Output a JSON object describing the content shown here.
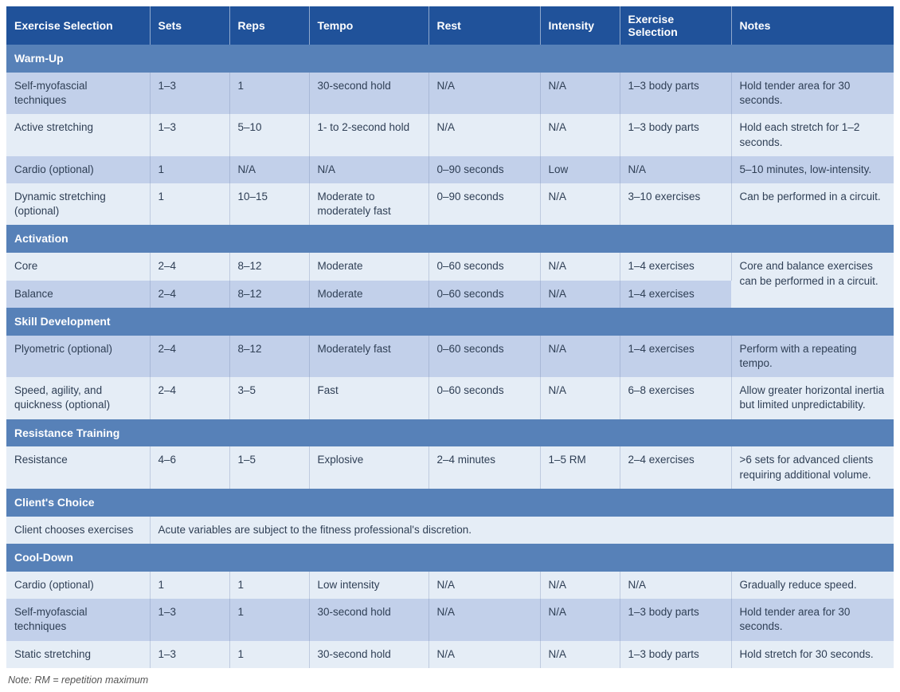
{
  "colors": {
    "header_bg": "#20529a",
    "header_fg": "#ffffff",
    "section_bg": "#5781b8",
    "section_fg": "#ffffff",
    "row_a_bg": "#c2d0ea",
    "row_b_bg": "#e5edf6",
    "row_fg": "#2f3f55"
  },
  "columns": [
    "Exercise Selection",
    "Sets",
    "Reps",
    "Tempo",
    "Rest",
    "Intensity",
    "Exercise Selection",
    "Notes"
  ],
  "footnote_label": "Note:",
  "footnote_text": "RM = repetition maximum",
  "sections": [
    {
      "title": "Warm-Up",
      "rows": [
        {
          "style": "a",
          "c1": "Self-myofascial techniques",
          "c2": "1–3",
          "c3": "1",
          "c4": "30-second hold",
          "c5": "N/A",
          "c6": "N/A",
          "c7": "1–3 body parts",
          "c8": "Hold tender area for 30 seconds."
        },
        {
          "style": "b",
          "c1": "Active stretching",
          "c2": "1–3",
          "c3": "5–10",
          "c4": "1- to 2-second hold",
          "c5": "N/A",
          "c6": "N/A",
          "c7": "1–3 body parts",
          "c8": "Hold each stretch for 1–2 seconds."
        },
        {
          "style": "a",
          "c1": "Cardio (optional)",
          "c2": "1",
          "c3": "N/A",
          "c4": "N/A",
          "c5": "0–90 seconds",
          "c6": "Low",
          "c7": "N/A",
          "c8": "5–10 minutes, low-intensity."
        },
        {
          "style": "b",
          "c1": "Dynamic stretching (optional)",
          "c2": "1",
          "c3": "10–15",
          "c4": "Moderate to moderately fast",
          "c5": "0–90 seconds",
          "c6": "N/A",
          "c7": "3–10 exercises",
          "c8": "Can be performed in a circuit."
        }
      ]
    },
    {
      "title": "Activation",
      "mergedNote": "Core and balance exercises can be performed in a circuit.",
      "rows": [
        {
          "style": "b",
          "c1": "Core",
          "c2": "2–4",
          "c3": "8–12",
          "c4": "Moderate",
          "c5": "0–60 seconds",
          "c6": "N/A",
          "c7": "1–4 exercises",
          "c8_merge_start": true
        },
        {
          "style": "a",
          "c1": "Balance",
          "c2": "2–4",
          "c3": "8–12",
          "c4": "Moderate",
          "c5": "0–60 seconds",
          "c6": "N/A",
          "c7": "1–4 exercises",
          "c8_merged": true
        }
      ]
    },
    {
      "title": "Skill Development",
      "rows": [
        {
          "style": "a",
          "c1": "Plyometric (optional)",
          "c2": "2–4",
          "c3": "8–12",
          "c4": "Moderately fast",
          "c5": "0–60 seconds",
          "c6": "N/A",
          "c7": "1–4 exercises",
          "c8": "Perform with a repeating tempo."
        },
        {
          "style": "b",
          "c1": "Speed, agility, and quickness (optional)",
          "c2": "2–4",
          "c3": "3–5",
          "c4": "Fast",
          "c5": "0–60 seconds",
          "c6": "N/A",
          "c7": "6–8 exercises",
          "c8": "Allow greater horizontal inertia but limited unpredictability."
        }
      ]
    },
    {
      "title": "Resistance Training",
      "rows": [
        {
          "style": "b",
          "c1": "Resistance",
          "c2": "4–6",
          "c3": "1–5",
          "c4": "Explosive",
          "c5": "2–4 minutes",
          "c6": "1–5 RM",
          "c7": "2–4 exercises",
          "c8": ">6 sets for advanced clients requiring additional volume."
        }
      ]
    },
    {
      "title": "Client's Choice",
      "rows": [
        {
          "style": "b",
          "c1": "Client chooses exercises",
          "span_text": "Acute variables are subject to the fitness professional's discretion."
        }
      ]
    },
    {
      "title": "Cool-Down",
      "rows": [
        {
          "style": "b",
          "c1": "Cardio (optional)",
          "c2": "1",
          "c3": "1",
          "c4": "Low intensity",
          "c5": "N/A",
          "c6": "N/A",
          "c7": "N/A",
          "c8": "Gradually reduce speed."
        },
        {
          "style": "a",
          "c1": "Self-myofascial techniques",
          "c2": "1–3",
          "c3": "1",
          "c4": "30-second hold",
          "c5": "N/A",
          "c6": "N/A",
          "c7": "1–3 body parts",
          "c8": "Hold tender area for 30 seconds."
        },
        {
          "style": "b",
          "c1": "Static stretching",
          "c2": "1–3",
          "c3": "1",
          "c4": "30-second hold",
          "c5": "N/A",
          "c6": "N/A",
          "c7": "1–3 body parts",
          "c8": "Hold stretch for 30 seconds."
        }
      ]
    }
  ]
}
